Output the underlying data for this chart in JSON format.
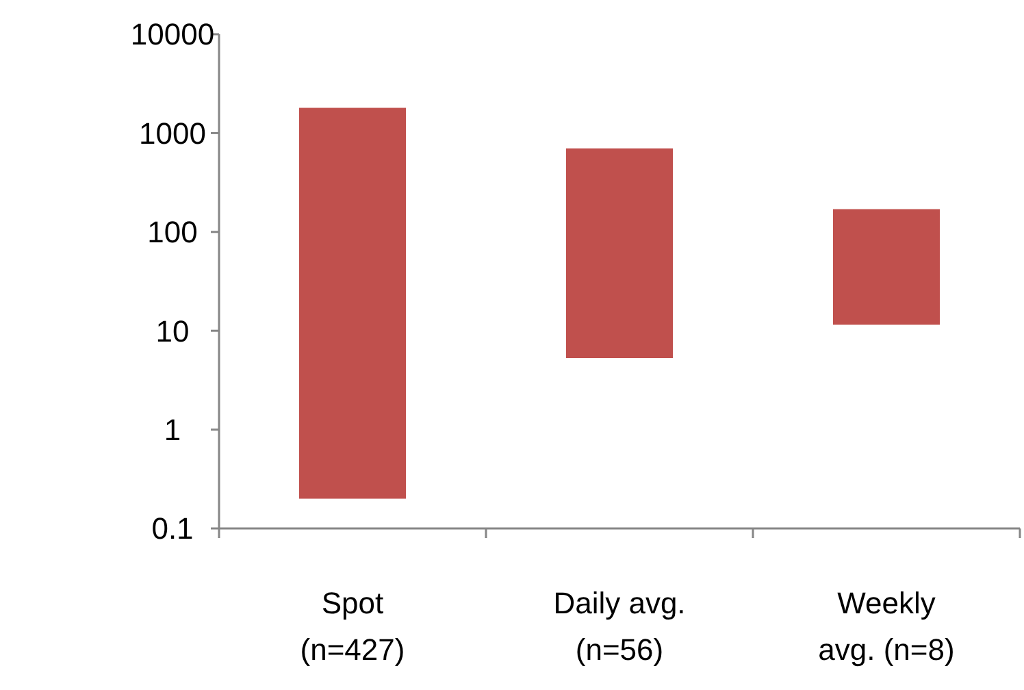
{
  "chart_data": {
    "type": "bar",
    "categories": [
      "Spot\n(n=427)",
      "Daily avg.\n(n=56)",
      "Weekly\navg. (n=8)"
    ],
    "series": [
      {
        "color": "#c0504d",
        "values": [
          1799.8,
          694.7,
          158.5
        ],
        "base": [
          0.2,
          5.3,
          11.5
        ]
      }
    ],
    "log": true,
    "ylim": [
      0.1,
      10000
    ],
    "yticks": [
      0.1,
      1,
      10,
      100,
      1000,
      10000
    ],
    "grid": false
  }
}
